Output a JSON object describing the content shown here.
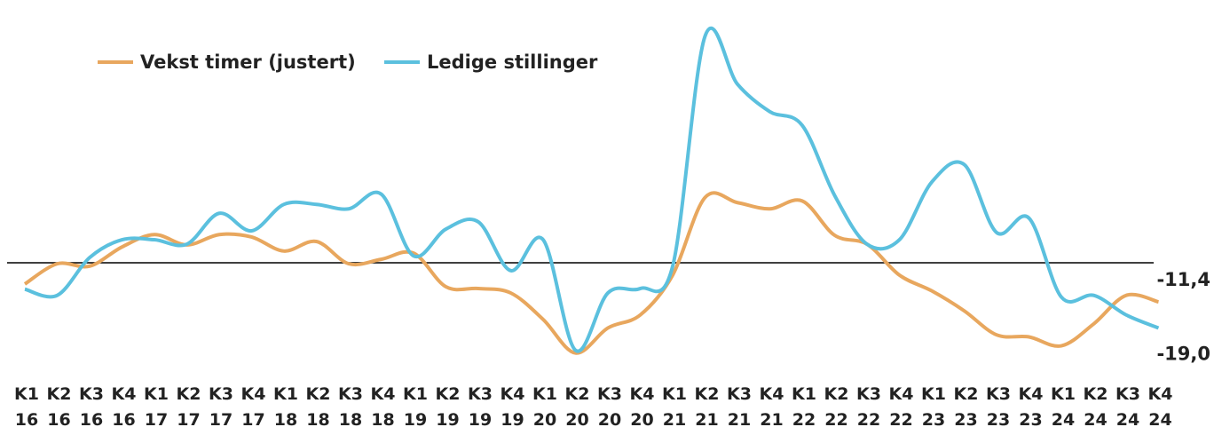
{
  "chart_data": {
    "type": "line",
    "categories": [
      "K1 16",
      "K2 16",
      "K3 16",
      "K4 16",
      "K1 17",
      "K2 17",
      "K3 17",
      "K4 17",
      "K1 18",
      "K2 18",
      "K3 18",
      "K4 18",
      "K1 19",
      "K2 19",
      "K3 19",
      "K4 19",
      "K1 20",
      "K2 20",
      "K3 20",
      "K4 20",
      "K1 21",
      "K2 21",
      "K3 21",
      "K4 21",
      "K1 22",
      "K2 22",
      "K3 22",
      "K4 22",
      "K1 23",
      "K2 23",
      "K3 23",
      "K4 23",
      "K1 24",
      "K2 24",
      "K3 24",
      "K4 24"
    ],
    "series": [
      {
        "name": "Vekst timer (justert)",
        "color": "#e8a75e",
        "values": [
          -6.2,
          -0.3,
          -1,
          4.6,
          8.2,
          5.2,
          8.2,
          7.5,
          3.4,
          6.2,
          -0.3,
          1,
          2.8,
          -7,
          -7.5,
          -8.8,
          -16.5,
          -26.3,
          -19,
          -15.2,
          -3.6,
          19,
          17.5,
          15.7,
          18,
          8,
          5.4,
          -3.6,
          -8.2,
          -14,
          -21,
          -21.6,
          -24.2,
          -17.8,
          -9.5,
          -11.4
        ],
        "value_labels": [
          null,
          null,
          null,
          null,
          null,
          null,
          null,
          null,
          null,
          null,
          null,
          null,
          null,
          null,
          null,
          null,
          null,
          null,
          null,
          null,
          null,
          null,
          null,
          null,
          null,
          null,
          null,
          null,
          null,
          null,
          null,
          null,
          null,
          null,
          null,
          "-11,4"
        ]
      },
      {
        "name": "Ledige stillinger",
        "color": "#5bc0de",
        "values": [
          -7.7,
          -9.5,
          1.5,
          6.7,
          6.7,
          5.4,
          14.4,
          9.3,
          17,
          17,
          15.7,
          20,
          2,
          9.8,
          11.9,
          -2.3,
          6.7,
          -25.5,
          -8.8,
          -7.5,
          -1,
          66,
          52,
          44,
          40,
          19.6,
          5.4,
          6.7,
          23.5,
          28.6,
          8.8,
          13,
          -10,
          -9.5,
          -15.2,
          -19
        ],
        "value_labels": [
          null,
          null,
          null,
          null,
          null,
          null,
          null,
          null,
          null,
          null,
          null,
          null,
          null,
          null,
          null,
          null,
          null,
          null,
          null,
          null,
          null,
          null,
          null,
          null,
          null,
          null,
          null,
          null,
          null,
          null,
          null,
          null,
          null,
          null,
          null,
          "-19,0"
        ]
      }
    ],
    "ylim": [
      -30,
      76
    ],
    "yticks": [
      0
    ]
  }
}
